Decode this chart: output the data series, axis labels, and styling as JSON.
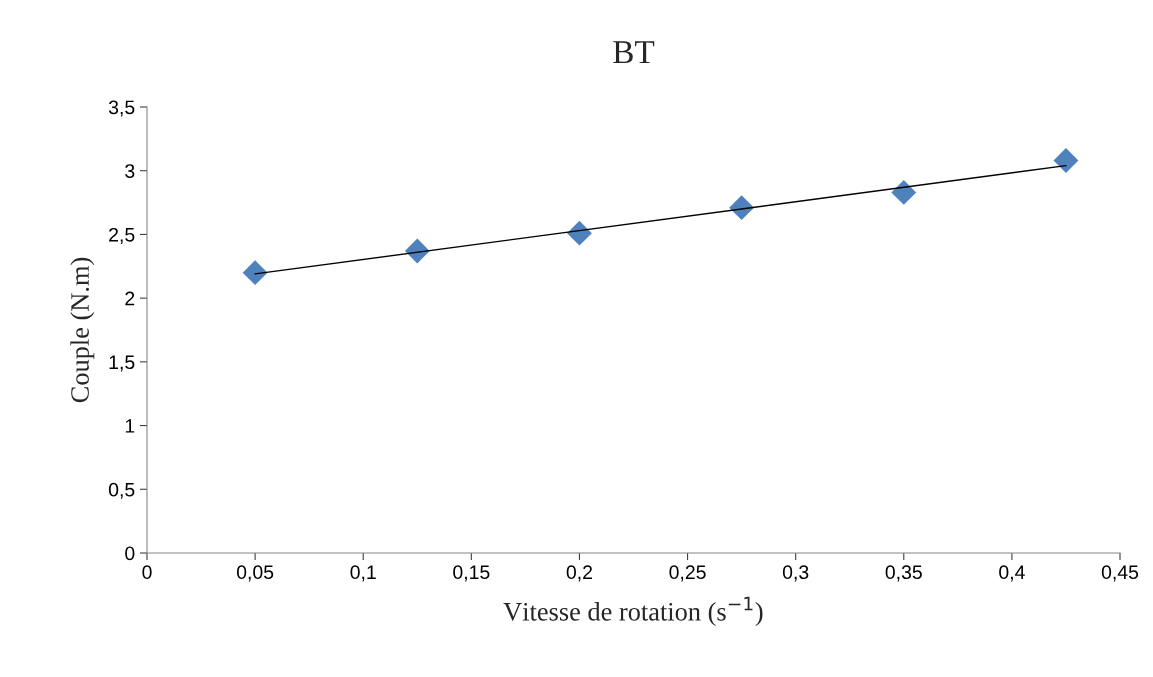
{
  "chart_data": {
    "type": "scatter",
    "title": "BT",
    "xlabel": "Vitesse de rotation (s$^{−1}$)",
    "ylabel": "Couple (N.m)",
    "series": [
      {
        "color": "#4f81bd",
        "marker": "diamond",
        "x": [
          0.05,
          0.125,
          0.2,
          0.275,
          0.35,
          0.425
        ],
        "values": [
          2.2,
          2.37,
          2.51,
          2.71,
          2.83,
          3.08
        ]
      },
      {
        "type": "line",
        "color": "#000000",
        "marker": "none",
        "line_style": "solid",
        "x": [
          0.05,
          0.425
        ],
        "values": [
          2.19,
          3.04
        ]
      }
    ],
    "xlim": [
      0,
      0.45
    ],
    "xticks": [
      0,
      {
        "value": 0.05,
        "label": "0,05"
      },
      {
        "value": 0.1,
        "label": "0,1"
      },
      {
        "value": 0.15,
        "label": "0,15"
      },
      {
        "value": 0.2,
        "label": "0,2"
      },
      {
        "value": 0.25,
        "label": "0,25"
      },
      {
        "value": 0.3,
        "label": "0,3"
      },
      {
        "value": 0.35,
        "label": "0,35"
      },
      {
        "value": 0.4,
        "label": "0,4"
      },
      {
        "value": 0.45,
        "label": "0,45"
      }
    ],
    "ylim": [
      0,
      3.5
    ],
    "yticks": [
      0,
      {
        "value": 0.5,
        "label": "0,5"
      },
      1,
      {
        "value": 1.5,
        "label": "1,5"
      },
      2,
      {
        "value": 2.5,
        "label": "2,5"
      },
      3,
      {
        "value": 3.5,
        "label": "3,5"
      }
    ],
    "grid": false,
    "legend": false
  }
}
